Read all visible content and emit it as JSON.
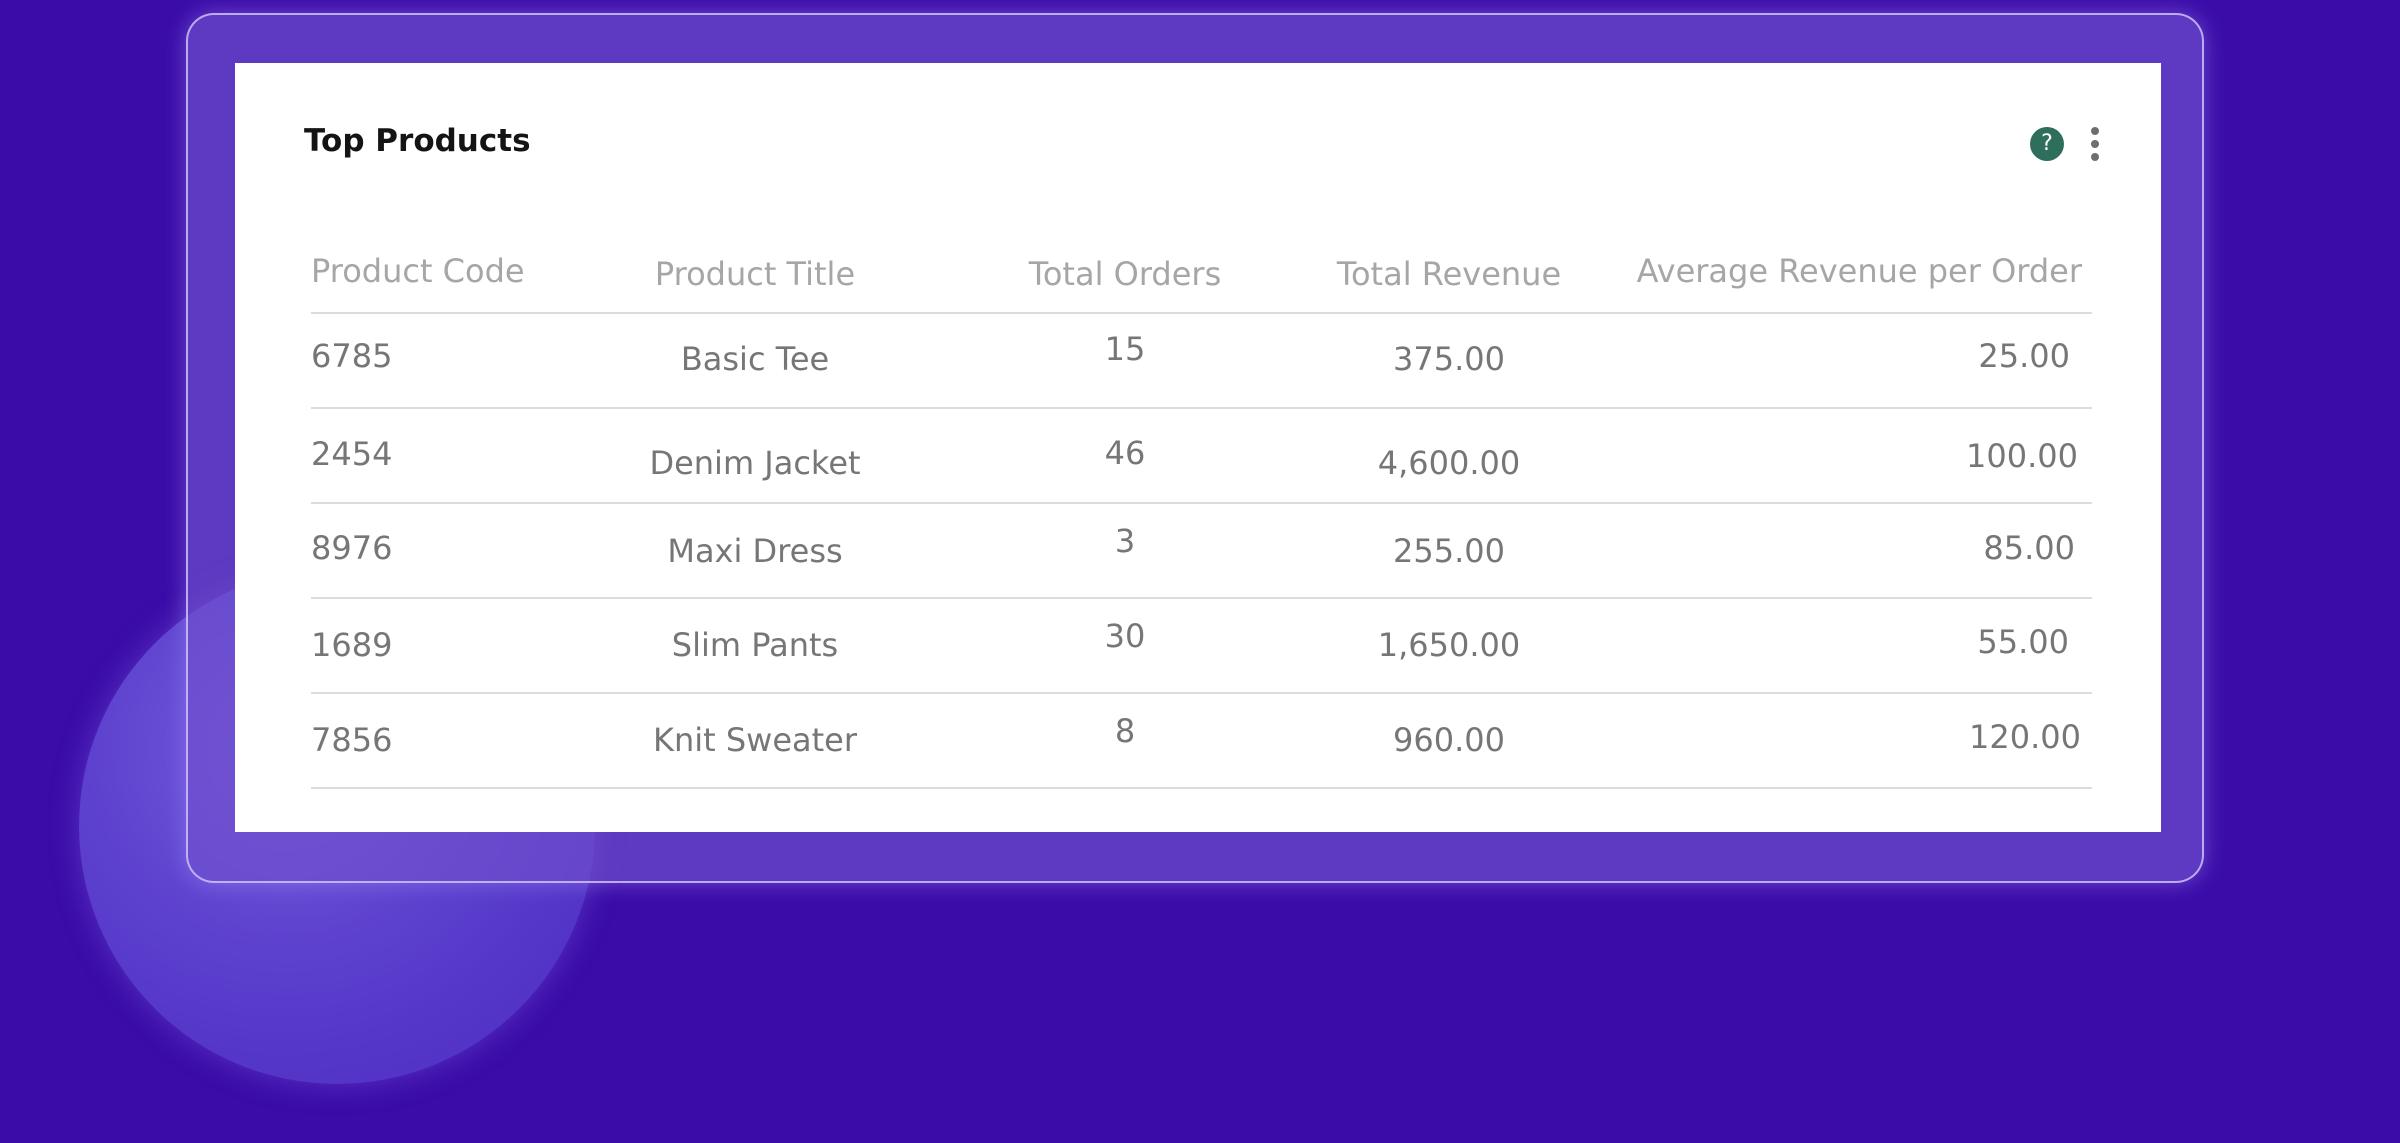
{
  "card": {
    "title": "Top Products",
    "help_icon": "help-circle-icon",
    "help_glyph": "?",
    "more_icon": "more-vertical-icon"
  },
  "table": {
    "columns": [
      "Product Code",
      "Product Title",
      "Total Orders",
      "Total Revenue",
      "Average Revenue per Order"
    ],
    "rows": [
      [
        "6785",
        "Basic Tee",
        "15",
        "375.00",
        "25.00"
      ],
      [
        "2454",
        "Denim Jacket",
        "46",
        "4,600.00",
        "100.00"
      ],
      [
        "8976",
        "Maxi Dress",
        "3",
        "255.00",
        "85.00"
      ],
      [
        "1689",
        "Slim Pants",
        "30",
        "1,650.00",
        "55.00"
      ],
      [
        "7856",
        "Knit Sweater",
        "8",
        "960.00",
        "120.00"
      ]
    ]
  },
  "colors": {
    "background": "#3b0ca8",
    "help_icon_bg": "#2e6e5c"
  }
}
